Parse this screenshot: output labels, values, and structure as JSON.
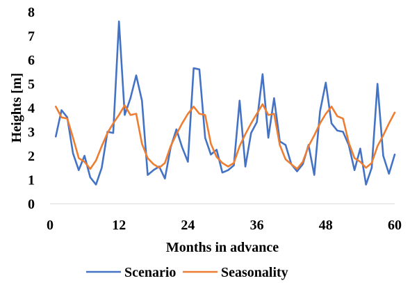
{
  "chart_data": {
    "type": "line",
    "title": "",
    "xlabel": "Months in advance",
    "ylabel": "Heights [m]",
    "xlim": [
      0,
      60
    ],
    "ylim": [
      0,
      8
    ],
    "xticks": [
      0,
      12,
      24,
      36,
      48,
      60
    ],
    "yticks": [
      0,
      1,
      2,
      3,
      4,
      5,
      6,
      7,
      8
    ],
    "grid": false,
    "legend_position": "bottom",
    "series": [
      {
        "name": "Scenario",
        "color": "#4472c4",
        "x": [
          1,
          2,
          3,
          4,
          5,
          6,
          7,
          8,
          9,
          10,
          11,
          12,
          13,
          14,
          15,
          16,
          17,
          18,
          19,
          20,
          21,
          22,
          23,
          24,
          25,
          26,
          27,
          28,
          29,
          30,
          31,
          32,
          33,
          34,
          35,
          36,
          37,
          38,
          39,
          40,
          41,
          42,
          43,
          44,
          45,
          46,
          47,
          48,
          49,
          50,
          51,
          52,
          53,
          54,
          55,
          56,
          57,
          58,
          59,
          60
        ],
        "values": [
          2.8,
          3.9,
          3.6,
          2.1,
          1.4,
          2.0,
          1.1,
          0.8,
          1.5,
          3.0,
          2.95,
          7.6,
          3.7,
          4.4,
          5.35,
          4.3,
          1.2,
          1.4,
          1.55,
          1.05,
          2.35,
          3.1,
          2.35,
          1.75,
          5.65,
          5.6,
          2.75,
          2.05,
          2.25,
          1.3,
          1.4,
          1.6,
          4.3,
          1.55,
          2.95,
          3.4,
          5.4,
          2.75,
          4.4,
          2.6,
          2.45,
          1.65,
          1.35,
          1.65,
          2.45,
          1.2,
          3.85,
          5.05,
          3.35,
          3.05,
          3.0,
          2.45,
          1.4,
          2.3,
          0.8,
          1.5,
          5.0,
          2.0,
          1.25,
          2.05
        ]
      },
      {
        "name": "Seasonality",
        "color": "#ed7d31",
        "x": [
          1,
          2,
          3,
          4,
          5,
          6,
          7,
          8,
          9,
          10,
          11,
          12,
          13,
          14,
          15,
          16,
          17,
          18,
          19,
          20,
          21,
          22,
          23,
          24,
          25,
          26,
          27,
          28,
          29,
          30,
          31,
          32,
          33,
          34,
          35,
          36,
          37,
          38,
          39,
          40,
          41,
          42,
          43,
          44,
          45,
          46,
          47,
          48,
          49,
          50,
          51,
          52,
          53,
          54,
          55,
          56,
          57,
          58,
          59,
          60
        ],
        "values": [
          4.05,
          3.6,
          3.55,
          2.75,
          1.9,
          1.75,
          1.45,
          1.8,
          2.4,
          2.95,
          3.35,
          3.7,
          4.1,
          3.7,
          3.75,
          2.5,
          1.9,
          1.65,
          1.5,
          1.7,
          2.4,
          2.9,
          3.35,
          3.75,
          4.05,
          3.75,
          3.7,
          2.5,
          1.95,
          1.7,
          1.55,
          1.7,
          2.4,
          2.9,
          3.35,
          3.75,
          4.15,
          3.7,
          3.75,
          2.45,
          1.85,
          1.65,
          1.45,
          1.75,
          2.4,
          2.85,
          3.35,
          3.75,
          4.05,
          3.65,
          3.55,
          2.55,
          1.9,
          1.75,
          1.5,
          1.7,
          2.4,
          2.85,
          3.35,
          3.8
        ]
      }
    ]
  }
}
